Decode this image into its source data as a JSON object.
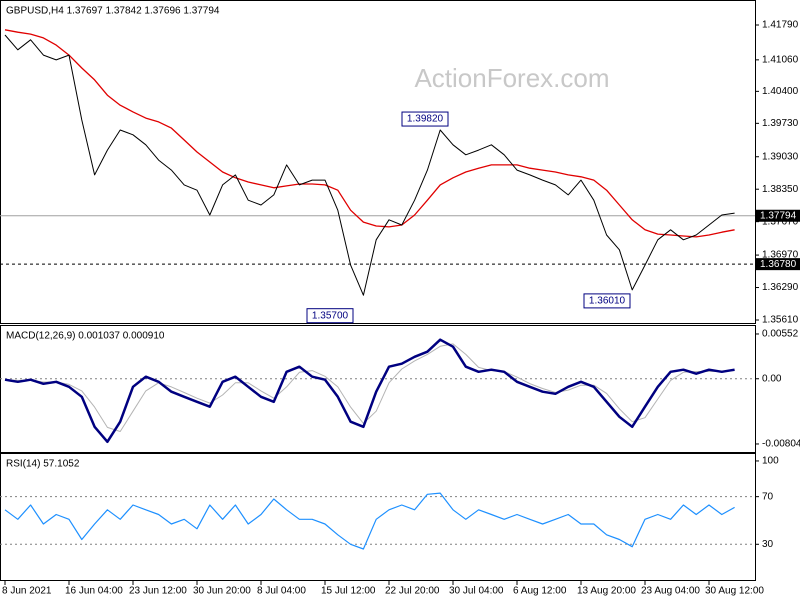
{
  "watermark": "ActionForex.com",
  "chart_data": [
    {
      "type": "line",
      "title": "GBPUSD,H4  1.37697 1.37842 1.37696 1.37794",
      "categories": [
        "8 Jun 2021",
        null,
        null,
        null,
        null,
        "16 Jun 04:00",
        null,
        null,
        null,
        null,
        "23 Jun 12:00",
        null,
        null,
        null,
        null,
        "30 Jun 20:00",
        null,
        null,
        null,
        null,
        "8 Jul 04:00",
        null,
        null,
        null,
        null,
        "15 Jul 12:00",
        null,
        null,
        null,
        null,
        "22 Jul 20:00",
        null,
        null,
        null,
        null,
        "30 Jul 04:00",
        null,
        null,
        null,
        null,
        "6 Aug 12:00",
        null,
        null,
        null,
        null,
        "13 Aug 20:00",
        null,
        null,
        null,
        null,
        "23 Aug 04:00",
        null,
        null,
        null,
        null,
        "30 Aug 12:00",
        null,
        null
      ],
      "series": [
        {
          "color": "#000000",
          "values": [
            1.4158,
            1.4127,
            1.4148,
            1.4116,
            1.4106,
            1.4116,
            1.398,
            1.3865,
            1.3917,
            1.3959,
            1.3949,
            1.3928,
            1.3896,
            1.3875,
            1.3844,
            1.3833,
            1.3781,
            1.3844,
            1.3865,
            1.3812,
            1.3802,
            1.3823,
            1.3886,
            1.3844,
            1.3854,
            1.3854,
            1.3791,
            1.3676,
            1.3613,
            1.3729,
            1.3771,
            1.376,
            1.3812,
            1.3875,
            1.3959,
            1.3928,
            1.3907,
            1.3917,
            1.3928,
            1.3907,
            1.3875,
            1.3865,
            1.3854,
            1.3844,
            1.3823,
            1.3854,
            1.3812,
            1.3739,
            1.3708,
            1.3624,
            1.3676,
            1.3729,
            1.375,
            1.3729,
            1.3739,
            1.376,
            1.3781,
            1.3785
          ]
        },
        {
          "color": "#e00000",
          "values": [
            1.4169,
            1.4164,
            1.416,
            1.4152,
            1.4137,
            1.4116,
            1.4089,
            1.4064,
            1.4032,
            1.4011,
            1.3997,
            1.3984,
            1.3976,
            1.3963,
            1.3938,
            1.3913,
            1.3892,
            1.3871,
            1.3859,
            1.385,
            1.3844,
            1.3838,
            1.3842,
            1.3846,
            1.3846,
            1.3844,
            1.3833,
            1.3791,
            1.3766,
            1.3758,
            1.3756,
            1.376,
            1.3781,
            1.3812,
            1.3844,
            1.3859,
            1.3871,
            1.3879,
            1.3886,
            1.3886,
            1.3886,
            1.3879,
            1.3875,
            1.3871,
            1.3865,
            1.3861,
            1.3854,
            1.3833,
            1.3802,
            1.3771,
            1.375,
            1.3741,
            1.3739,
            1.3737,
            1.3735,
            1.3739,
            1.3745,
            1.375
          ]
        }
      ],
      "ylim": [
        1.35547,
        1.42272
      ],
      "yticks": [
        {
          "value": 1.4179,
          "label": "1.41790"
        },
        {
          "value": 1.4106,
          "label": "1.41060"
        },
        {
          "value": 1.404,
          "label": "1.40400"
        },
        {
          "value": 1.3973,
          "label": "1.39730"
        },
        {
          "value": 1.3903,
          "label": "1.39030"
        },
        {
          "value": 1.3835,
          "label": "1.38350"
        },
        {
          "value": 1.3767,
          "label": "1.37670"
        },
        {
          "value": 1.3697,
          "label": "1.36970"
        },
        {
          "value": 1.3629,
          "label": "1.36290"
        },
        {
          "value": 1.3561,
          "label": "1.35610"
        }
      ],
      "levels": [
        {
          "value": 1.37794,
          "label": "1.37794",
          "style": "solid"
        },
        {
          "value": 1.3678,
          "label": "1.36780",
          "style": "dashed"
        }
      ],
      "annotations": [
        {
          "value": 1.3982,
          "label": "1.39820"
        },
        {
          "value": 1.357,
          "label": "1.35700"
        },
        {
          "value": 1.3601,
          "label": "1.36010"
        }
      ]
    },
    {
      "type": "line",
      "title": "MACD(12,26,9) 0.001037 0.000910",
      "series": [
        {
          "color": "#000080",
          "values": [
            -0.00012,
            -0.00037,
            -0.00012,
            -0.00062,
            -0.00037,
            -0.00099,
            -0.00222,
            -0.00592,
            -0.00777,
            -0.0053,
            -0.00099,
            0.00025,
            -0.00037,
            -0.0016,
            -0.00222,
            -0.00284,
            -0.00345,
            -0.00037,
            0.00025,
            -0.00099,
            -0.00222,
            -0.00284,
            0.00086,
            0.00148,
            0.00025,
            -0.00012,
            -0.00222,
            -0.0053,
            -0.00592,
            -0.0016,
            0.00148,
            0.00185,
            0.00271,
            0.00333,
            0.00481,
            0.00395,
            0.00148,
            0.00086,
            0.00111,
            0.00086,
            -0.00037,
            -0.00099,
            -0.0016,
            -0.00185,
            -0.00099,
            -0.00037,
            -0.00099,
            -0.00284,
            -0.00469,
            -0.00592,
            -0.00345,
            -0.00099,
            0.00086,
            0.00111,
            0.00062,
            0.00111,
            0.00086,
            0.00111
          ]
        },
        {
          "color": "#b4b4b4",
          "values": [
            -0.0001,
            -0.0002,
            -0.0002,
            -0.0004,
            -0.0004,
            -0.0007,
            -0.0015,
            -0.0035,
            -0.006,
            -0.0065,
            -0.004,
            -0.0015,
            -0.0005,
            -0.001,
            -0.0017,
            -0.0024,
            -0.003,
            -0.002,
            -0.0005,
            -0.0005,
            -0.0015,
            -0.0024,
            -0.001,
            0.0008,
            0.001,
            0.0003,
            -0.001,
            -0.0035,
            -0.0055,
            -0.004,
            -0.0005,
            0.0012,
            0.0022,
            0.003,
            0.004,
            0.0043,
            0.003,
            0.0014,
            0.001,
            0.0009,
            0.0002,
            -0.0006,
            -0.0012,
            -0.0017,
            -0.0014,
            -0.0008,
            -0.0008,
            -0.0018,
            -0.0037,
            -0.0053,
            -0.0048,
            -0.0025,
            -0.0002,
            0.0008,
            0.0009,
            0.0009,
            0.0009,
            0.001
          ]
        }
      ],
      "ylim": [
        -0.00903,
        0.00638
      ],
      "yticks": [
        0.00552,
        {
          "value": 0,
          "label": "0.00"
        },
        -0.00804
      ],
      "levels": [
        0
      ]
    },
    {
      "type": "line",
      "title": "RSI(14) 57.1052",
      "series": [
        {
          "color": "#1e90ff",
          "values": [
            59,
            51,
            63,
            47,
            55,
            51,
            34,
            47,
            59,
            51,
            63,
            59,
            55,
            47,
            51,
            43,
            63,
            51,
            63,
            47,
            55,
            68,
            59,
            51,
            51,
            47,
            38,
            30,
            26,
            51,
            59,
            63,
            59,
            72,
            73,
            59,
            51,
            59,
            55,
            51,
            55,
            51,
            47,
            51,
            55,
            47,
            47,
            38,
            34,
            28,
            51,
            55,
            51,
            63,
            55,
            63,
            55,
            61
          ]
        }
      ],
      "ylim": [
        0,
        105
      ],
      "yticks": [
        100,
        70,
        30
      ],
      "levels": [
        70,
        30
      ]
    }
  ]
}
